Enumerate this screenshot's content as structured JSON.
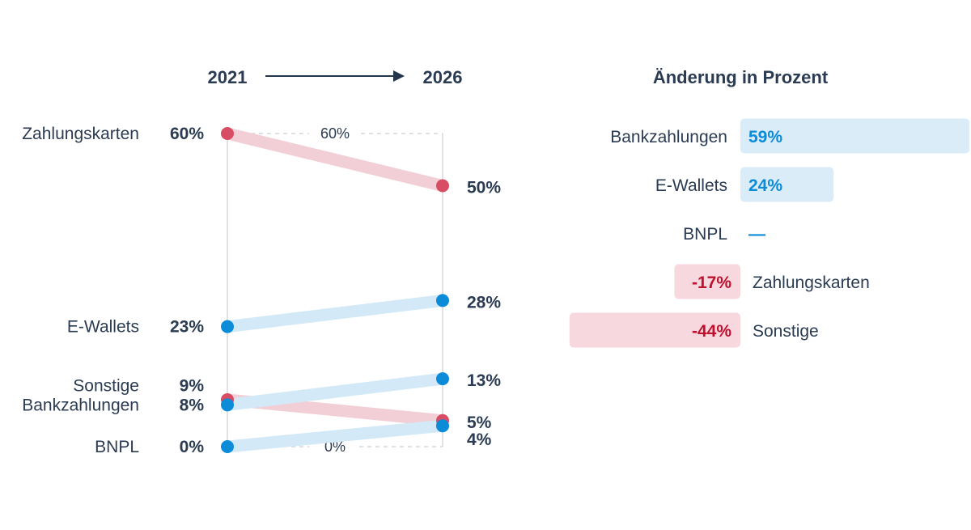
{
  "chart_data": [
    {
      "type": "slope",
      "start_label": "2021",
      "end_label": "2026",
      "axis_max_label": "60%",
      "axis_min_label": "0%",
      "ylim": [
        0,
        60
      ],
      "colors": {
        "decline": "#d94d64",
        "decline_light": "#f2cfd6",
        "growth": "#0b8bd8",
        "growth_light": "#d3e9f7"
      },
      "series": [
        {
          "name": "Zahlungskarten",
          "start": 60,
          "end": 50,
          "start_text": "60%",
          "end_text": "50%",
          "trend": "decline"
        },
        {
          "name": "E-Wallets",
          "start": 23,
          "end": 28,
          "start_text": "23%",
          "end_text": "28%",
          "trend": "growth"
        },
        {
          "name": "Sonstige",
          "start": 9,
          "end": 5,
          "start_text": "9%",
          "end_text": "5%",
          "trend": "decline"
        },
        {
          "name": "Bankzahlungen",
          "start": 8,
          "end": 13,
          "start_text": "8%",
          "end_text": "13%",
          "trend": "growth"
        },
        {
          "name": "BNPL",
          "start": 0,
          "end": 4,
          "start_text": "0%",
          "end_text": "4%",
          "trend": "growth"
        }
      ]
    },
    {
      "type": "bar",
      "title": "Änderung in Prozent",
      "colors": {
        "positive_text": "#0b8bd8",
        "positive_fill": "#d9ecf8",
        "negative_text": "#c0102e",
        "negative_fill": "#f6d8de"
      },
      "bars": [
        {
          "name": "Bankzahlungen",
          "value": 59,
          "text": "59%"
        },
        {
          "name": "E-Wallets",
          "value": 24,
          "text": "24%"
        },
        {
          "name": "BNPL",
          "value": null,
          "text": "—"
        },
        {
          "name": "Zahlungskarten",
          "value": -17,
          "text": "-17%"
        },
        {
          "name": "Sonstige",
          "value": -44,
          "text": "-44%"
        }
      ]
    }
  ]
}
